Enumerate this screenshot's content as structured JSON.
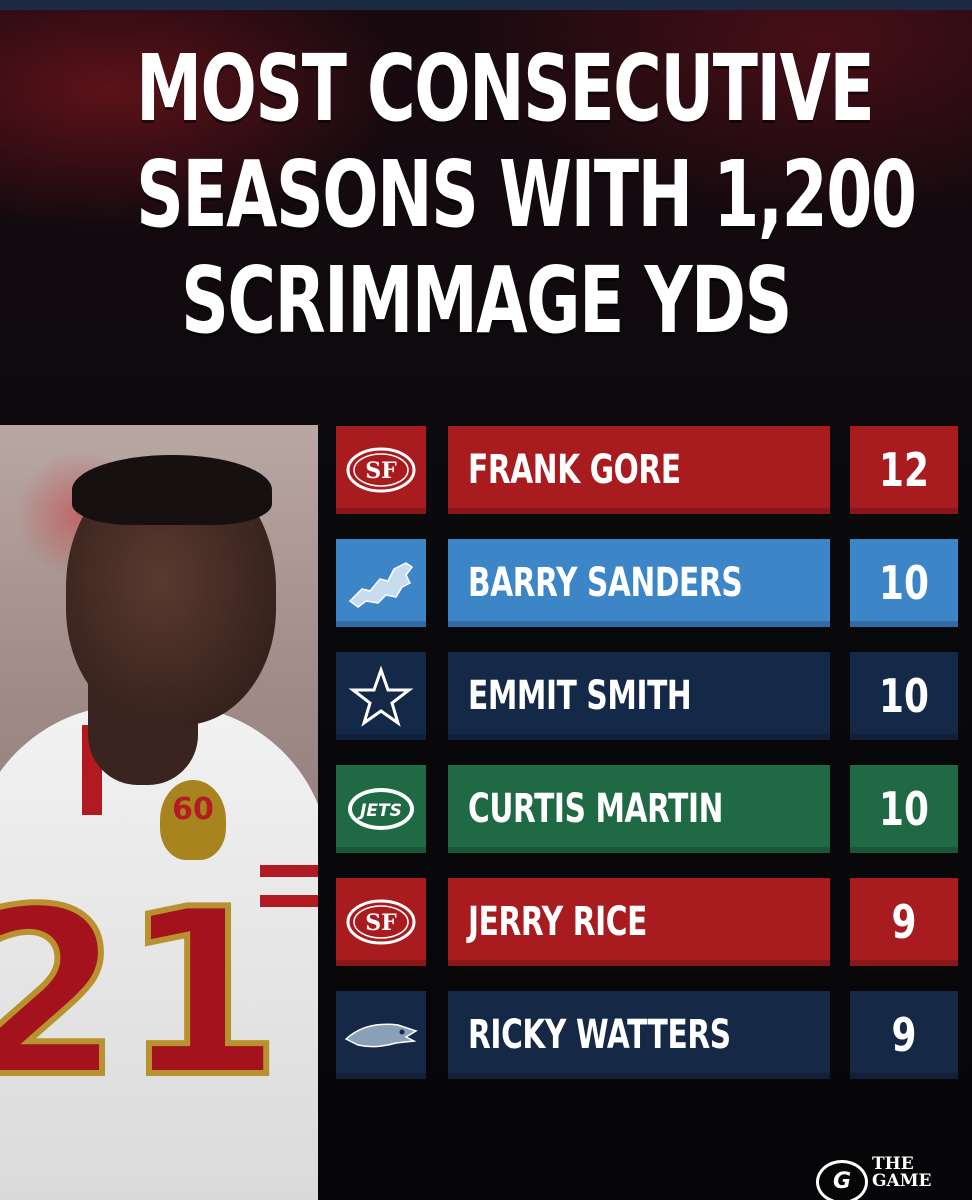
{
  "title_lines": [
    "MOST CONSECUTIVE",
    "SEASONS WITH 1,200",
    "SCRIMMAGE YDS"
  ],
  "player_photo": {
    "jersey_number": "21",
    "patch_text": "60"
  },
  "brand": {
    "mark": "G",
    "line1": "THE",
    "line2": "GAME"
  },
  "colors": {
    "niners_red": "#a81c1f",
    "lions_blue": "#3c86c8",
    "cowboys_navy": "#142848",
    "jets_green": "#1f6a45",
    "seahawks_navy": "#152845"
  },
  "chart_data": {
    "type": "table",
    "title": "MOST CONSECUTIVE SEASONS WITH 1,200 SCRIMMAGE YDS",
    "categories": [
      "FRANK GORE",
      "BARRY SANDERS",
      "EMMIT SMITH",
      "CURTIS MARTIN",
      "JERRY RICE",
      "RICKY WATTERS"
    ],
    "values": [
      12,
      10,
      10,
      10,
      9,
      9
    ],
    "rows": [
      {
        "team": "49ers",
        "logo": "sf-49ers-logo",
        "player": "FRANK GORE",
        "value": "12",
        "color": "#a81c1f",
        "value_color": "#a81c1f"
      },
      {
        "team": "Lions",
        "logo": "lions-logo",
        "player": "BARRY SANDERS",
        "value": "10",
        "color": "#3c86c8",
        "value_color": "#3c86c8"
      },
      {
        "team": "Cowboys",
        "logo": "cowboys-star-logo",
        "player": "EMMIT SMITH",
        "value": "10",
        "color": "#142848",
        "value_color": "#142848"
      },
      {
        "team": "Jets",
        "logo": "jets-logo",
        "player": "CURTIS MARTIN",
        "value": "10",
        "color": "#1f6a45",
        "value_color": "#1f6a45"
      },
      {
        "team": "49ers",
        "logo": "sf-49ers-logo",
        "player": "JERRY RICE",
        "value": "9",
        "color": "#a81c1f",
        "value_color": "#a81c1f"
      },
      {
        "team": "Seahawks",
        "logo": "seahawks-logo",
        "player": "RICKY WATTERS",
        "value": "9",
        "color": "#152845",
        "value_color": "#152845"
      }
    ]
  }
}
